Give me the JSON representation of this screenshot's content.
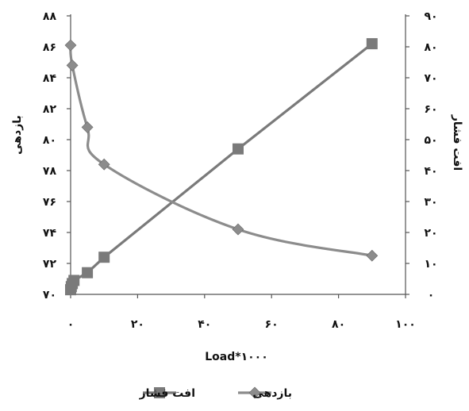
{
  "chart_data": {
    "type": "line",
    "xlabel": "Load*۱۰۰۰",
    "ylabel_left": "بازدهی",
    "ylabel_right": "افت فشار",
    "xlim": [
      0,
      100
    ],
    "ylim_left": [
      70,
      88
    ],
    "ylim_right": [
      0,
      90
    ],
    "x_ticks": [
      0,
      20,
      40,
      60,
      80,
      100
    ],
    "x_tick_labels": [
      "۰",
      "۲۰",
      "۴۰",
      "۶۰",
      "۸۰",
      "۱۰۰"
    ],
    "y_left_ticks": [
      70,
      72,
      74,
      76,
      78,
      80,
      82,
      84,
      86,
      88
    ],
    "y_left_tick_labels": [
      "۷۰",
      "۷۲",
      "۷۴",
      "۷۶",
      "۷۸",
      "۸۰",
      "۸۲",
      "۸۴",
      "۸۶",
      "۸۸"
    ],
    "y_right_ticks": [
      0,
      10,
      20,
      30,
      40,
      50,
      60,
      70,
      80,
      90
    ],
    "y_right_tick_labels": [
      "۰",
      "۱۰",
      "۲۰",
      "۳۰",
      "۴۰",
      "۵۰",
      "۶۰",
      "۷۰",
      "۸۰",
      "۹۰"
    ],
    "legend_position": "bottom",
    "series": [
      {
        "name": "افت فشار",
        "axis": "right",
        "marker": "square",
        "color": "#7a7a7a",
        "x": [
          0,
          0.2,
          0.5,
          1,
          5,
          10,
          50,
          90
        ],
        "y": [
          1.5,
          2.5,
          3.5,
          4.5,
          7,
          12,
          47,
          81
        ]
      },
      {
        "name": "بازدهی",
        "axis": "left",
        "marker": "diamond",
        "color": "#8c8c8c",
        "x": [
          0,
          0.5,
          5,
          10,
          50,
          90
        ],
        "y": [
          86.1,
          84.8,
          80.8,
          78.4,
          74.2,
          72.5
        ]
      }
    ]
  }
}
